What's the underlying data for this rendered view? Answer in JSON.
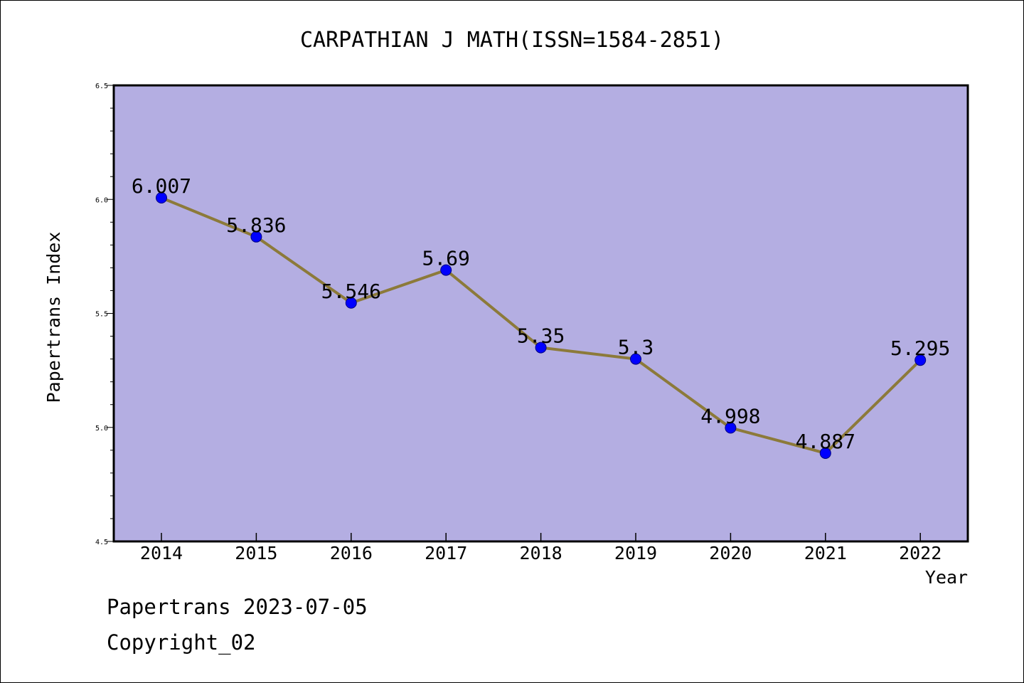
{
  "chart_data": {
    "type": "line",
    "title": "CARPATHIAN J MATH(ISSN=1584-2851)",
    "xlabel": "Year",
    "ylabel": "Papertrans Index",
    "categories": [
      "2014",
      "2015",
      "2016",
      "2017",
      "2018",
      "2019",
      "2020",
      "2021",
      "2022"
    ],
    "values": [
      6.007,
      5.836,
      5.546,
      5.69,
      5.35,
      5.3,
      4.998,
      4.887,
      5.295
    ],
    "data_labels": [
      "6.007",
      "5.836",
      "5.546",
      "5.69",
      "5.35",
      "5.3",
      "4.998",
      "4.887",
      "5.295"
    ],
    "ylim": [
      4.5,
      6.5
    ],
    "y_tick_labels": [
      "4.5",
      "5.0",
      "5.5",
      "6.0",
      "6.5"
    ],
    "y_ticks": [
      4.5,
      5.0,
      5.5,
      6.0,
      6.5
    ],
    "grid": false,
    "colors": {
      "plot_background": "#b4aee2",
      "line": "#8c7a3a",
      "marker_fill": "#0000ff",
      "marker_edge": "#000080"
    }
  },
  "footer": {
    "line1": "Papertrans 2023-07-05",
    "line2": "Copyright_02"
  }
}
